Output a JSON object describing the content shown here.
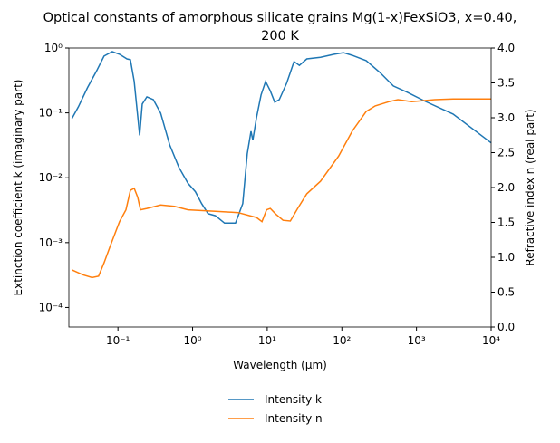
{
  "chart_data": {
    "type": "line",
    "title": [
      "Optical constants of amorphous silicate grains Mg(1-x)FexSiO3, x=0.40,",
      "200 K"
    ],
    "xlabel": "Wavelength (μm)",
    "ylabel": "Extinction coefficient k (imaginary part)",
    "y2label": "Refractive index n (real part)",
    "xscale": "log",
    "yscale": "log",
    "xlim": [
      0.022,
      10000
    ],
    "ylim": [
      5e-05,
      1
    ],
    "y2lim": [
      0,
      4
    ],
    "xticks": [
      {
        "value": 0.1,
        "label": "10⁻¹"
      },
      {
        "value": 1,
        "label": "10⁰"
      },
      {
        "value": 10,
        "label": "10¹"
      },
      {
        "value": 100,
        "label": "10²"
      },
      {
        "value": 1000,
        "label": "10³"
      },
      {
        "value": 10000,
        "label": "10⁴"
      }
    ],
    "yticks": [
      {
        "value": 0.0001,
        "label": "10⁻⁴"
      },
      {
        "value": 0.001,
        "label": "10⁻³"
      },
      {
        "value": 0.01,
        "label": "10⁻²"
      },
      {
        "value": 0.1,
        "label": "10⁻¹"
      },
      {
        "value": 1,
        "label": "10⁰"
      }
    ],
    "y2ticks": [
      {
        "value": 0,
        "label": "0.0"
      },
      {
        "value": 0.5,
        "label": "0.5"
      },
      {
        "value": 1,
        "label": "1.0"
      },
      {
        "value": 1.5,
        "label": "1.5"
      },
      {
        "value": 2,
        "label": "2.0"
      },
      {
        "value": 2.5,
        "label": "2.5"
      },
      {
        "value": 3,
        "label": "3.0"
      },
      {
        "value": 3.5,
        "label": "3.5"
      },
      {
        "value": 4,
        "label": "4.0"
      }
    ],
    "legend": "below",
    "series": [
      {
        "name": "Intensity k",
        "color": "#1f77b4",
        "axis": "y",
        "x": [
          0.0242,
          0.0295,
          0.039,
          0.052,
          0.065,
          0.084,
          0.105,
          0.132,
          0.147,
          0.165,
          0.195,
          0.212,
          0.244,
          0.298,
          0.373,
          0.494,
          0.655,
          0.87,
          1.09,
          1.32,
          1.61,
          2.02,
          2.68,
          3.76,
          4.7,
          5.4,
          6.07,
          6.42,
          7.19,
          8.28,
          9.5,
          10.96,
          12.6,
          14.5,
          18.2,
          20.4,
          22.9,
          27,
          33.9,
          51.7,
          78.9,
          105,
          138,
          212,
          324,
          490,
          752,
          1320,
          3090,
          10000
        ],
        "values": [
          0.082,
          0.124,
          0.244,
          0.449,
          0.75,
          0.88,
          0.8,
          0.68,
          0.66,
          0.305,
          0.045,
          0.137,
          0.177,
          0.16,
          0.099,
          0.032,
          0.0145,
          0.0082,
          0.0061,
          0.004,
          0.0028,
          0.0026,
          0.002,
          0.002,
          0.004,
          0.0235,
          0.052,
          0.038,
          0.085,
          0.189,
          0.305,
          0.22,
          0.146,
          0.16,
          0.286,
          0.42,
          0.62,
          0.54,
          0.68,
          0.72,
          0.8,
          0.85,
          0.77,
          0.64,
          0.42,
          0.26,
          0.208,
          0.15,
          0.096,
          0.0345
        ]
      },
      {
        "name": "Intensity n",
        "color": "#ff7f0e",
        "axis": "y2",
        "x": [
          0.0242,
          0.0338,
          0.045,
          0.055,
          0.065,
          0.08,
          0.105,
          0.128,
          0.147,
          0.165,
          0.184,
          0.2,
          0.244,
          0.373,
          0.569,
          0.87,
          2.02,
          4.09,
          7.19,
          8.5,
          9.8,
          11,
          13,
          16.3,
          20.4,
          25.6,
          33.9,
          51.7,
          90.6,
          138,
          212,
          280,
          425,
          563,
          864,
          1750,
          3090,
          10000
        ],
        "values": [
          0.82,
          0.75,
          0.71,
          0.73,
          0.92,
          1.18,
          1.51,
          1.68,
          1.96,
          1.99,
          1.86,
          1.68,
          1.7,
          1.75,
          1.73,
          1.68,
          1.66,
          1.64,
          1.57,
          1.51,
          1.68,
          1.7,
          1.62,
          1.53,
          1.52,
          1.7,
          1.91,
          2.09,
          2.45,
          2.81,
          3.09,
          3.17,
          3.23,
          3.26,
          3.23,
          3.26,
          3.27,
          3.27
        ]
      }
    ]
  }
}
